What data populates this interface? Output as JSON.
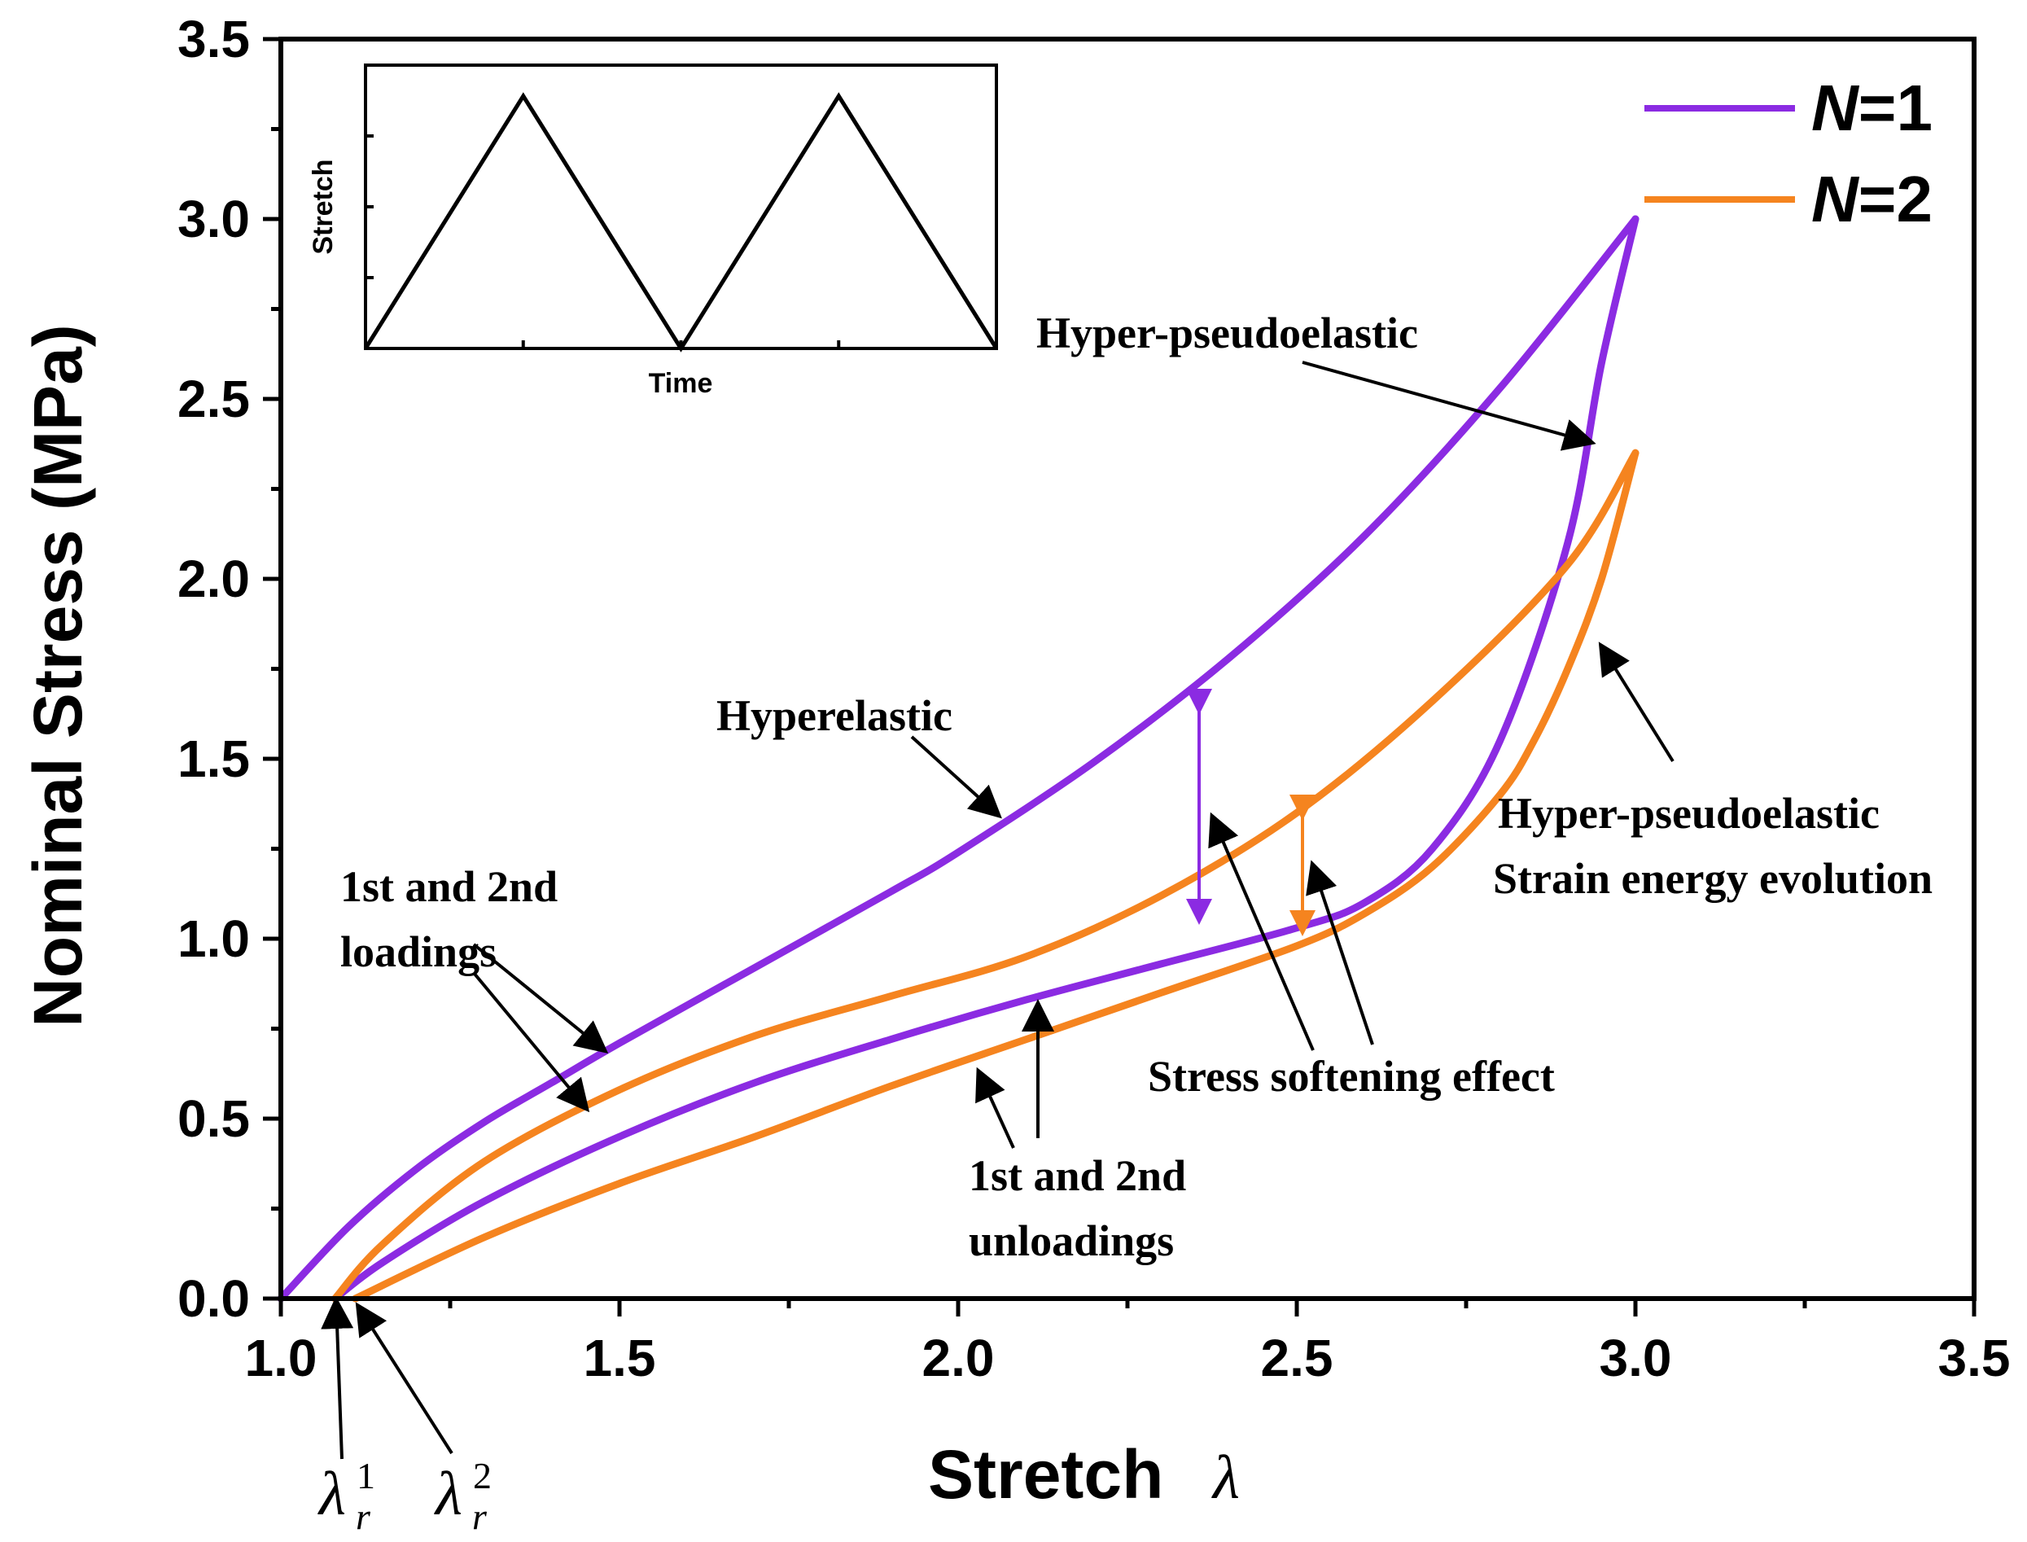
{
  "colors": {
    "n1": "#8b2be2",
    "n2": "#f5841f",
    "axis": "#000000",
    "arrow": "#000000"
  },
  "chart_data": {
    "type": "line",
    "title": "",
    "xlabel": "Stretch",
    "xlabel_symbol": "λ",
    "ylabel": "Nominal Stress (MPa)",
    "xlim": [
      1.0,
      3.5
    ],
    "ylim": [
      0.0,
      3.5
    ],
    "xticks": [
      "1.0",
      "1.5",
      "2.0",
      "2.5",
      "3.0",
      "3.5"
    ],
    "yticks": [
      "0.0",
      "0.5",
      "1.0",
      "1.5",
      "2.0",
      "2.5",
      "3.0",
      "3.5"
    ],
    "grid": false,
    "legend_position": "top-right",
    "series": [
      {
        "name": "N=1",
        "legend_italic": "N",
        "legend_rest": "=1",
        "color": "#8b2be2",
        "loading": {
          "x": [
            1.0,
            1.1,
            1.2,
            1.3,
            1.4,
            1.5,
            1.7,
            1.9,
            2.0,
            2.2,
            2.4,
            2.6,
            2.8,
            3.0
          ],
          "y": [
            0.0,
            0.2,
            0.36,
            0.49,
            0.6,
            0.71,
            0.92,
            1.13,
            1.24,
            1.49,
            1.78,
            2.12,
            2.53,
            3.0
          ]
        },
        "unloading": {
          "x": [
            3.0,
            2.95,
            2.9,
            2.8,
            2.7,
            2.6,
            2.5,
            2.3,
            2.1,
            1.9,
            1.7,
            1.5,
            1.3,
            1.15,
            1.08
          ],
          "y": [
            3.0,
            2.6,
            2.1,
            1.55,
            1.25,
            1.1,
            1.03,
            0.93,
            0.83,
            0.72,
            0.6,
            0.45,
            0.27,
            0.1,
            0.0
          ]
        }
      },
      {
        "name": "N=2",
        "legend_italic": "N",
        "legend_rest": "=2",
        "color": "#f5841f",
        "loading": {
          "x": [
            1.08,
            1.15,
            1.3,
            1.5,
            1.7,
            1.9,
            2.1,
            2.3,
            2.5,
            2.7,
            2.9,
            3.0
          ],
          "y": [
            0.0,
            0.15,
            0.38,
            0.58,
            0.73,
            0.84,
            0.95,
            1.12,
            1.35,
            1.66,
            2.04,
            2.35
          ]
        },
        "unloading": {
          "x": [
            3.0,
            2.95,
            2.9,
            2.85,
            2.8,
            2.7,
            2.6,
            2.5,
            2.3,
            2.1,
            1.9,
            1.7,
            1.5,
            1.3,
            1.11
          ],
          "y": [
            2.35,
            2.0,
            1.75,
            1.55,
            1.4,
            1.2,
            1.07,
            0.98,
            0.85,
            0.72,
            0.59,
            0.45,
            0.32,
            0.17,
            0.0
          ]
        }
      }
    ],
    "inset": {
      "type": "line",
      "xlabel": "Time",
      "ylabel": "Stretch",
      "points": [
        [
          0,
          0
        ],
        [
          1,
          1
        ],
        [
          2,
          0
        ],
        [
          3,
          1
        ],
        [
          4,
          0
        ]
      ]
    },
    "annotations": [
      {
        "id": "hyperelastic",
        "text": "Hyperelastic"
      },
      {
        "id": "hyper-pseudoelastic-top",
        "text": "Hyper-pseudoelastic"
      },
      {
        "id": "hyper-pseudoelastic-bottom",
        "text": "Hyper-pseudoelastic"
      },
      {
        "id": "strain-energy",
        "text": "Strain energy evolution"
      },
      {
        "id": "loadings-line1",
        "text": "1st and 2nd"
      },
      {
        "id": "loadings-line2",
        "text": "loadings"
      },
      {
        "id": "unloadings-line1",
        "text": "1st and 2nd"
      },
      {
        "id": "unloadings-line2",
        "text": "unloadings"
      },
      {
        "id": "softening",
        "text": "Stress softening effect"
      }
    ],
    "residual_stretch": [
      {
        "symbol": "λ",
        "sub": "r",
        "sup": "1",
        "x": 1.08
      },
      {
        "symbol": "λ",
        "sub": "r",
        "sup": "2",
        "x": 1.11
      }
    ]
  }
}
